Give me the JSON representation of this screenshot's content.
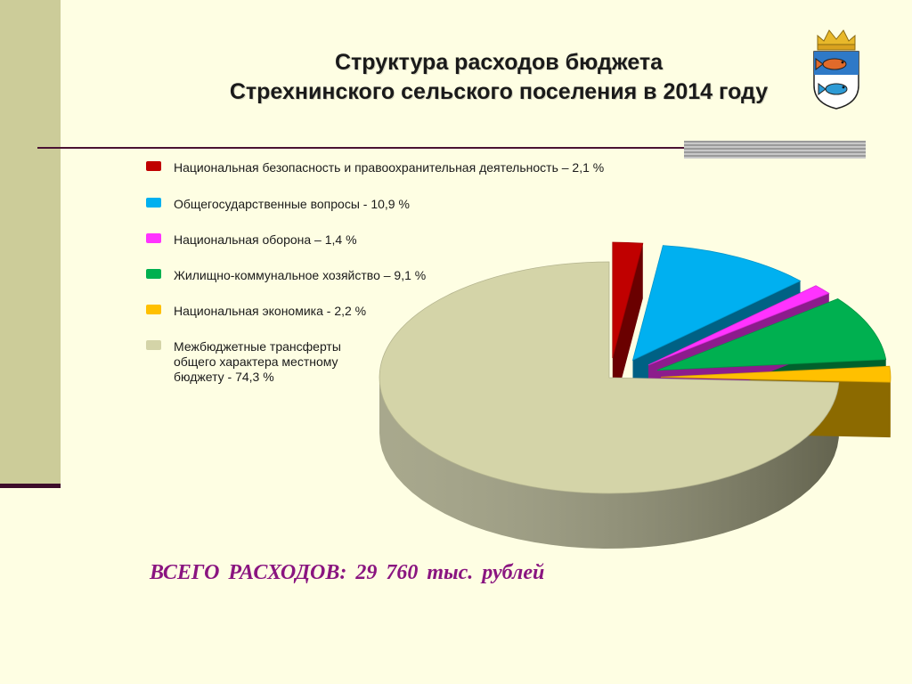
{
  "slide": {
    "title_line1": "Структура расходов бюджета",
    "title_line2": "Стрехнинского сельского поселения в 2014 году",
    "total": "ВСЕГО  РАСХОДОВ: 29  760 тыс. рублей"
  },
  "colors": {
    "background": "#fefee3",
    "left_band": "#cccc99",
    "accent_rule": "#4a1233",
    "total_text": "#8a1580"
  },
  "emblem": {
    "icon": "coat-of-arms-icon"
  },
  "chart_data": {
    "type": "pie",
    "style": "3d-exploded",
    "legend_position": "left",
    "series": [
      {
        "label": "Национальная безопасность и правоохранительная  деятельность – 2,1 %",
        "value": 2.1,
        "color": "#c00000"
      },
      {
        "label": "Общегосударственные вопросы  - 10,9 %",
        "value": 10.9,
        "color": "#00b0f0"
      },
      {
        "label": "Национальная оборона – 1,4 %",
        "value": 1.4,
        "color": "#ff33ff"
      },
      {
        "label": "Жилищно-коммунальное хозяйство – 9,1 %",
        "value": 9.1,
        "color": "#00b050"
      },
      {
        "label": "Национальная экономика  - 2,2 %",
        "value": 2.2,
        "color": "#ffc000"
      },
      {
        "label": "Межбюджетные трансферты\nобщего характера местному\nбюджету  - 74,3 %",
        "value": 74.3,
        "color": "#d4d4a8"
      }
    ]
  }
}
